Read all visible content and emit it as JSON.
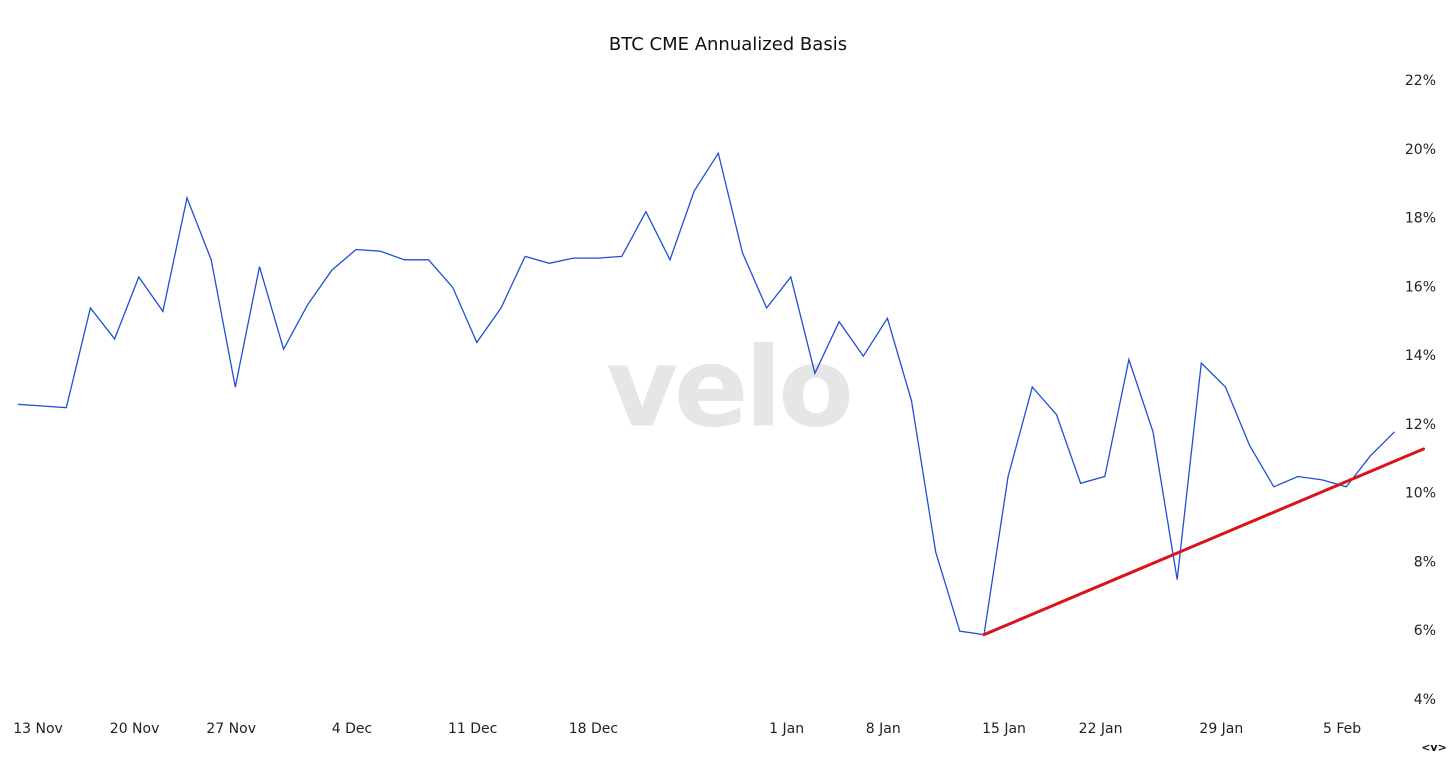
{
  "chart_data": {
    "type": "line",
    "title": "BTC CME Annualized Basis",
    "watermark": "velo",
    "nav_label": "<v>",
    "categories": [
      "13 Nov",
      null,
      null,
      null,
      "20 Nov",
      null,
      null,
      null,
      "27 Nov",
      null,
      null,
      null,
      null,
      "4 Dec",
      null,
      null,
      null,
      null,
      "11 Dec",
      null,
      null,
      null,
      null,
      "18 Dec",
      null,
      null,
      null,
      null,
      null,
      null,
      null,
      "1 Jan",
      null,
      null,
      null,
      "8 Jan",
      null,
      null,
      null,
      null,
      "15 Jan",
      null,
      null,
      null,
      "22 Jan",
      null,
      null,
      null,
      null,
      "29 Jan",
      null,
      null,
      null,
      null,
      "5 Feb",
      null,
      null,
      null
    ],
    "series": [
      {
        "color": "#1f4fd6",
        "values": [
          12.6,
          12.55,
          12.5,
          15.4,
          14.5,
          16.3,
          15.3,
          18.6,
          16.8,
          13.1,
          16.6,
          14.2,
          15.5,
          16.5,
          17.1,
          17.05,
          16.8,
          16.8,
          16.0,
          14.4,
          15.4,
          16.9,
          16.7,
          16.85,
          16.85,
          16.9,
          18.2,
          16.8,
          18.8,
          19.9,
          17.0,
          15.4,
          16.3,
          13.5,
          15.0,
          14.0,
          15.1,
          12.7,
          8.3,
          6.0,
          5.9,
          10.5,
          13.1,
          12.3,
          10.3,
          10.5,
          13.9,
          11.8,
          7.5,
          13.8,
          13.1,
          11.4,
          10.2,
          10.5,
          10.4,
          10.2,
          11.1,
          11.8
        ]
      }
    ],
    "trendline": {
      "color": "#d9141b",
      "start": {
        "index": 40,
        "value": 5.9
      },
      "end": {
        "index": 58.2,
        "value": 11.3
      }
    },
    "ylim": [
      4,
      22
    ],
    "yticks": [
      {
        "value": 4,
        "label": "4%"
      },
      {
        "value": 6,
        "label": "6%"
      },
      {
        "value": 8,
        "label": "8%"
      },
      {
        "value": 10,
        "label": "10%"
      },
      {
        "value": 12,
        "label": "12%"
      },
      {
        "value": 14,
        "label": "14%"
      },
      {
        "value": 16,
        "label": "16%"
      },
      {
        "value": 18,
        "label": "18%"
      },
      {
        "value": 20,
        "label": "20%"
      },
      {
        "value": 22,
        "label": "22%"
      }
    ],
    "y_axis_side": "right",
    "grid": false
  }
}
